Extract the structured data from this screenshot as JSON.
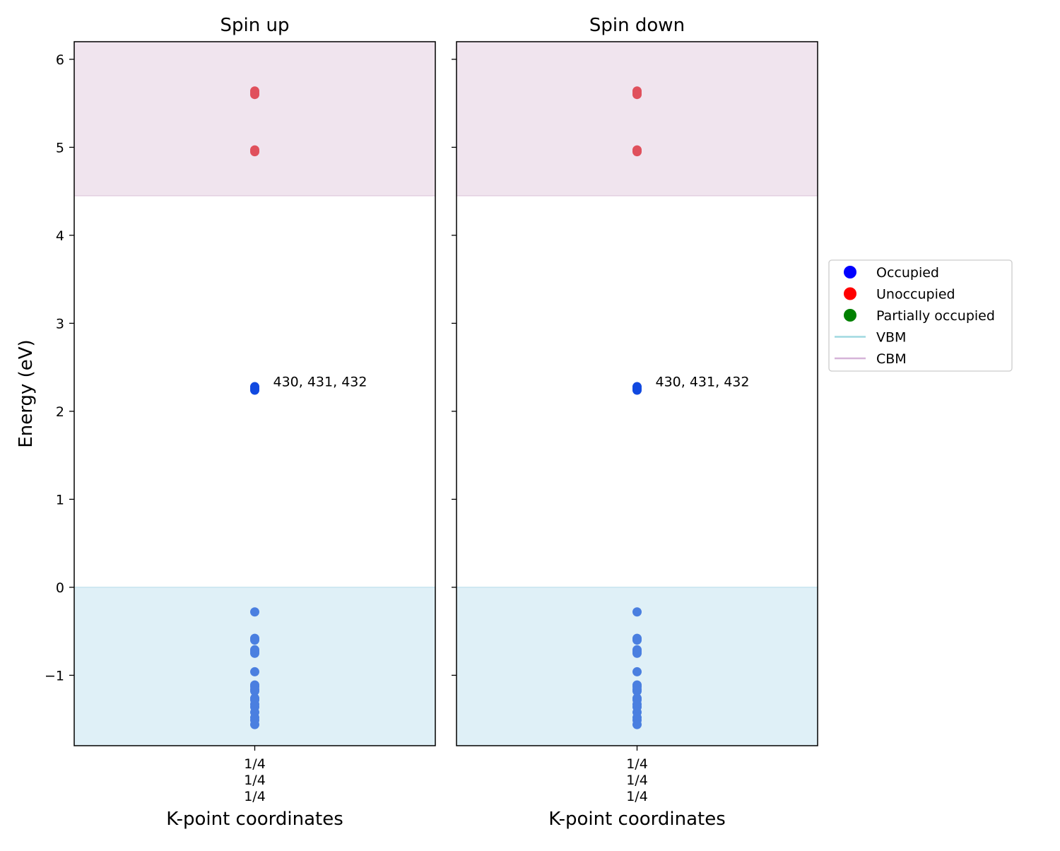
{
  "chart_data": {
    "type": "scatter",
    "ylabel": "Energy (eV)",
    "xlabel": "K-point coordinates",
    "ylim": [
      -1.8,
      6.2
    ],
    "yticks": [
      -1,
      0,
      1,
      2,
      3,
      4,
      5,
      6
    ],
    "ytick_labels": [
      "−1",
      "0",
      "1",
      "2",
      "3",
      "4",
      "5",
      "6"
    ],
    "vbm": 0.0,
    "cbm": 4.45,
    "colors": {
      "occupied_marker": "#4a7fe0",
      "defect_marker": "#1149e0",
      "unoccupied_marker": "#e0505c",
      "vbm_region": "#dff0f7",
      "cbm_region": "#f0e4ee",
      "legend_occupied": "#0000ff",
      "legend_unoccupied": "#ff0000",
      "legend_partial": "#008000",
      "legend_vbm": "#9fd9e0",
      "legend_cbm": "#d6b4d8"
    },
    "panels": [
      {
        "title": "Spin up",
        "kpoint_labels": [
          "1/4",
          "1/4",
          "1/4"
        ],
        "occupied": [
          -0.28,
          -0.58,
          -0.6,
          -0.71,
          -0.73,
          -0.75,
          -0.96,
          -1.11,
          -1.13,
          -1.16,
          -1.18,
          -1.26,
          -1.28,
          -1.33,
          -1.36,
          -1.42,
          -1.48,
          -1.51,
          -1.56
        ],
        "defect_occupied": [
          2.24,
          2.26,
          2.28
        ],
        "unoccupied": [
          4.95,
          4.97,
          5.6,
          5.62,
          5.64
        ],
        "annotation": {
          "text": "430, 431, 432",
          "y": 2.3
        }
      },
      {
        "title": "Spin down",
        "kpoint_labels": [
          "1/4",
          "1/4",
          "1/4"
        ],
        "occupied": [
          -0.28,
          -0.58,
          -0.6,
          -0.71,
          -0.73,
          -0.75,
          -0.96,
          -1.11,
          -1.13,
          -1.16,
          -1.18,
          -1.26,
          -1.28,
          -1.33,
          -1.36,
          -1.42,
          -1.48,
          -1.51,
          -1.56
        ],
        "defect_occupied": [
          2.24,
          2.26,
          2.28
        ],
        "unoccupied": [
          4.95,
          4.97,
          5.6,
          5.62,
          5.64
        ],
        "annotation": {
          "text": "430, 431, 432",
          "y": 2.3
        }
      }
    ],
    "legend": {
      "placement": "center-right",
      "entries": [
        {
          "label": "Occupied",
          "kind": "marker",
          "color": "#0000ff"
        },
        {
          "label": "Unoccupied",
          "kind": "marker",
          "color": "#ff0000"
        },
        {
          "label": "Partially occupied",
          "kind": "marker",
          "color": "#008000"
        },
        {
          "label": "VBM",
          "kind": "line",
          "color": "#9fd9e0"
        },
        {
          "label": "CBM",
          "kind": "line",
          "color": "#d6b4d8"
        }
      ]
    }
  }
}
